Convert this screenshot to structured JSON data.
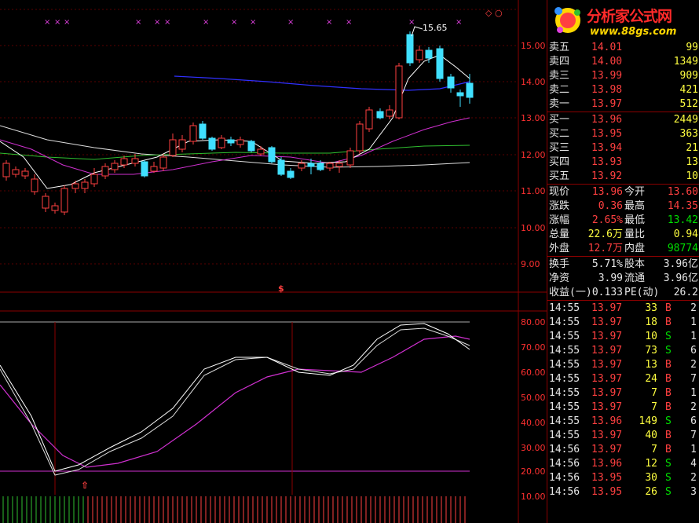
{
  "logo": {
    "name": "分析家公式网",
    "url": "www.88gs.com"
  },
  "price_axis": [
    "15.00",
    "14.00",
    "13.00",
    "12.00",
    "11.00",
    "10.00",
    "9.00"
  ],
  "osc_axis": [
    "80.00",
    "70.00",
    "60.00",
    "50.00",
    "40.00",
    "30.00",
    "20.00",
    "10.00"
  ],
  "annotations": {
    "peak_price": "15.65",
    "marker": "$"
  },
  "order_book": {
    "asks": [
      {
        "label": "卖五",
        "price": "14.01",
        "vol": "99"
      },
      {
        "label": "卖四",
        "price": "14.00",
        "vol": "1349"
      },
      {
        "label": "卖三",
        "price": "13.99",
        "vol": "909"
      },
      {
        "label": "卖二",
        "price": "13.98",
        "vol": "421"
      },
      {
        "label": "卖一",
        "price": "13.97",
        "vol": "512"
      }
    ],
    "bids": [
      {
        "label": "买一",
        "price": "13.96",
        "vol": "2449"
      },
      {
        "label": "买二",
        "price": "13.95",
        "vol": "363"
      },
      {
        "label": "买三",
        "price": "13.94",
        "vol": "21"
      },
      {
        "label": "买四",
        "price": "13.93",
        "vol": "13"
      },
      {
        "label": "买五",
        "price": "13.92",
        "vol": "10"
      }
    ]
  },
  "quote": [
    {
      "l1": "现价",
      "v1": "13.96",
      "l2": "今开",
      "v2": "13.60"
    },
    {
      "l1": "涨跌",
      "v1": "0.36",
      "l2": "最高",
      "v2": "14.35"
    },
    {
      "l1": "涨幅",
      "v1": "2.65%",
      "l2": "最低",
      "v2": "13.42"
    },
    {
      "l1": "总量",
      "v1": "22.6万",
      "l2": "量比",
      "v2": "0.94"
    },
    {
      "l1": "外盘",
      "v1": "12.7万",
      "l2": "内盘",
      "v2": "98774"
    }
  ],
  "fundamentals": [
    {
      "l1": "换手",
      "v1": "5.71%",
      "l2": "股本",
      "v2": "3.96亿"
    },
    {
      "l1": "净资",
      "v1": "3.99",
      "l2": "流通",
      "v2": "3.96亿"
    },
    {
      "l1": "收益(一)",
      "v1": "0.133",
      "l2": "PE(动)",
      "v2": "26.2"
    }
  ],
  "trades": [
    {
      "time": "14:55",
      "price": "13.97",
      "vol": "33",
      "side": "B",
      "n": "2"
    },
    {
      "time": "14:55",
      "price": "13.97",
      "vol": "18",
      "side": "B",
      "n": "1"
    },
    {
      "time": "14:55",
      "price": "13.97",
      "vol": "10",
      "side": "S",
      "n": "1"
    },
    {
      "time": "14:55",
      "price": "13.97",
      "vol": "73",
      "side": "S",
      "n": "6"
    },
    {
      "time": "14:55",
      "price": "13.97",
      "vol": "13",
      "side": "B",
      "n": "2"
    },
    {
      "time": "14:55",
      "price": "13.97",
      "vol": "24",
      "side": "B",
      "n": "7"
    },
    {
      "time": "14:55",
      "price": "13.97",
      "vol": "7",
      "side": "B",
      "n": "1"
    },
    {
      "time": "14:55",
      "price": "13.97",
      "vol": "7",
      "side": "B",
      "n": "2"
    },
    {
      "time": "14:55",
      "price": "13.96",
      "vol": "149",
      "side": "S",
      "n": "6"
    },
    {
      "time": "14:55",
      "price": "13.97",
      "vol": "40",
      "side": "B",
      "n": "7"
    },
    {
      "time": "14:56",
      "price": "13.97",
      "vol": "7",
      "side": "B",
      "n": "1"
    },
    {
      "time": "14:56",
      "price": "13.96",
      "vol": "12",
      "side": "S",
      "n": "4"
    },
    {
      "time": "14:56",
      "price": "13.95",
      "vol": "30",
      "side": "S",
      "n": "2"
    },
    {
      "time": "14:56",
      "price": "13.95",
      "vol": "26",
      "side": "S",
      "n": "3"
    }
  ],
  "colors": {
    "up": "#ff4040",
    "down": "#40e0ff",
    "grid": "#8b0000",
    "kline_k": "#ffffff",
    "kline_d": "#e040e0"
  }
}
